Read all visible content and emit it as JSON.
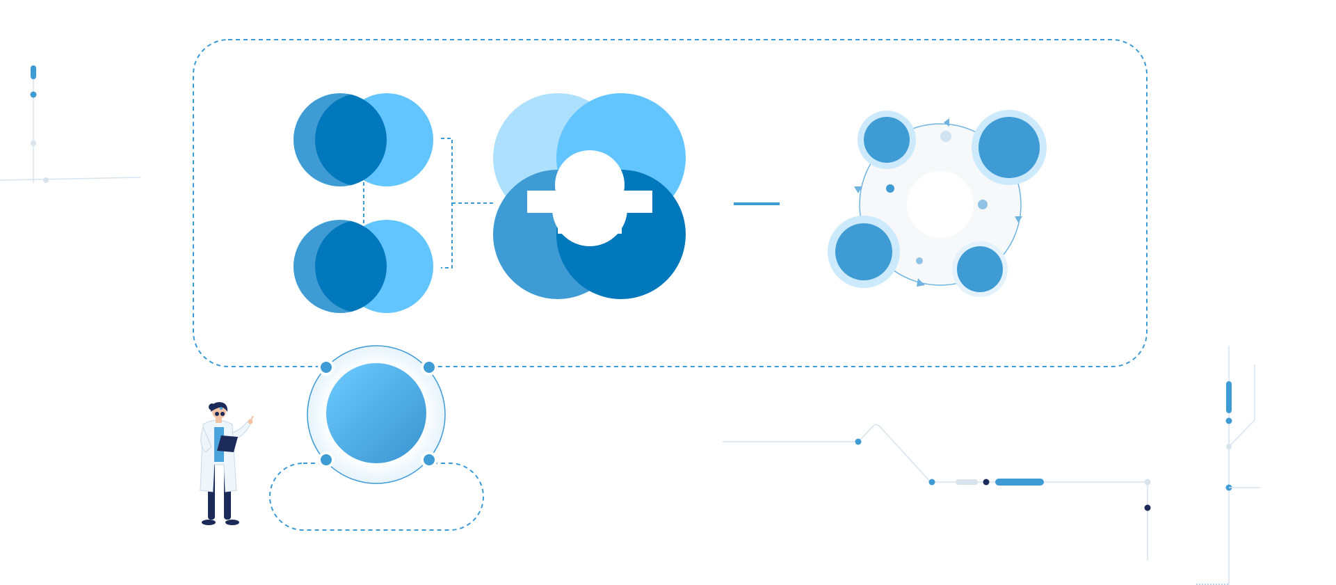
{
  "colors": {
    "light_blue": "#63c5ff",
    "mid_blue": "#3e9bd4",
    "dark_blue": "#0177bc",
    "pale_blue": "#ade0fd",
    "halo_blue": "#cdeafc",
    "navy": "#1b2a59",
    "line_gray": "#d7e3ed",
    "dash_blue": "#3a9ad6"
  },
  "icons": {
    "character": "scientist-with-tablet-icon",
    "hub": "hub-circle-icon"
  }
}
